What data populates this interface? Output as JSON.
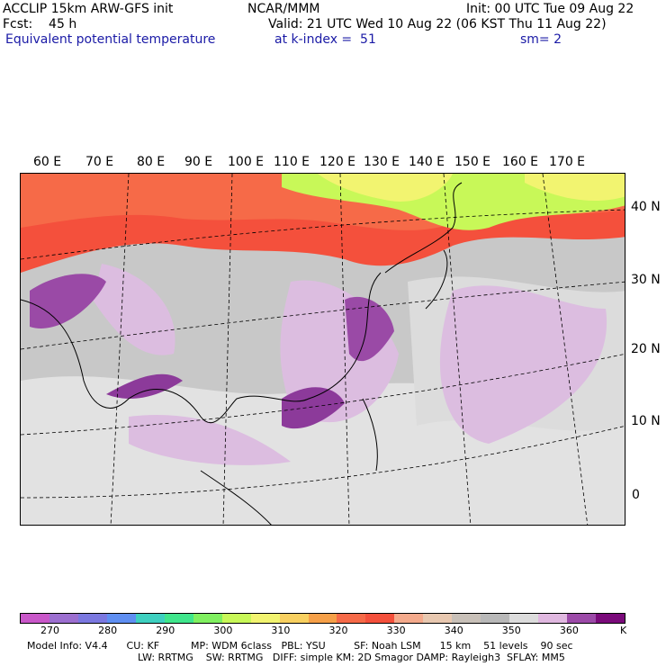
{
  "header": {
    "model": "ACCLIP 15km ARW-GFS init",
    "org": "NCAR/MMM",
    "init": "Init: 00 UTC Tue 09 Aug 22",
    "fcst": "Fcst:    45 h",
    "valid": "Valid: 21 UTC Wed 10 Aug 22 (06 KST Thu 11 Aug 22)",
    "field": "Equivalent potential temperature",
    "level": "at k-index =  51",
    "smooth": "sm= 2"
  },
  "map": {
    "lon_labels": [
      "60 E",
      "70 E",
      "80 E",
      "90 E",
      "100 E",
      "110 E",
      "120 E",
      "130 E",
      "140 E",
      "150 E",
      "160 E",
      "170 E"
    ],
    "lat_labels": [
      "40 N",
      "30 N",
      "20 N",
      "10 N",
      "0"
    ]
  },
  "colorbar": {
    "colors": [
      "#c957c9",
      "#9c6fd0",
      "#7b78e0",
      "#5f8ff2",
      "#3ed0c0",
      "#40e68c",
      "#80f060",
      "#c8f858",
      "#f2f470",
      "#f8d060",
      "#f6a048",
      "#f66a48",
      "#f4503c",
      "#f4aa8c",
      "#e8c8b0",
      "#c8c0b8",
      "#b8b8b8",
      "#dcdcdc",
      "#e0b8e0",
      "#9c4aa8",
      "#7a0a7a"
    ],
    "labels": [
      "270",
      "280",
      "290",
      "300",
      "310",
      "320",
      "330",
      "340",
      "350",
      "360",
      "K"
    ]
  },
  "footer": {
    "line1": "Model Info: V4.4      CU: KF          MP: WDM 6class   PBL: YSU         SF: Noah LSM      15 km    51 levels    90 sec",
    "line2": "LW: RRTMG    SW: RRTMG   DIFF: simple KM: 2D Smagor DAMP: Rayleigh3  SFLAY: MM5"
  }
}
